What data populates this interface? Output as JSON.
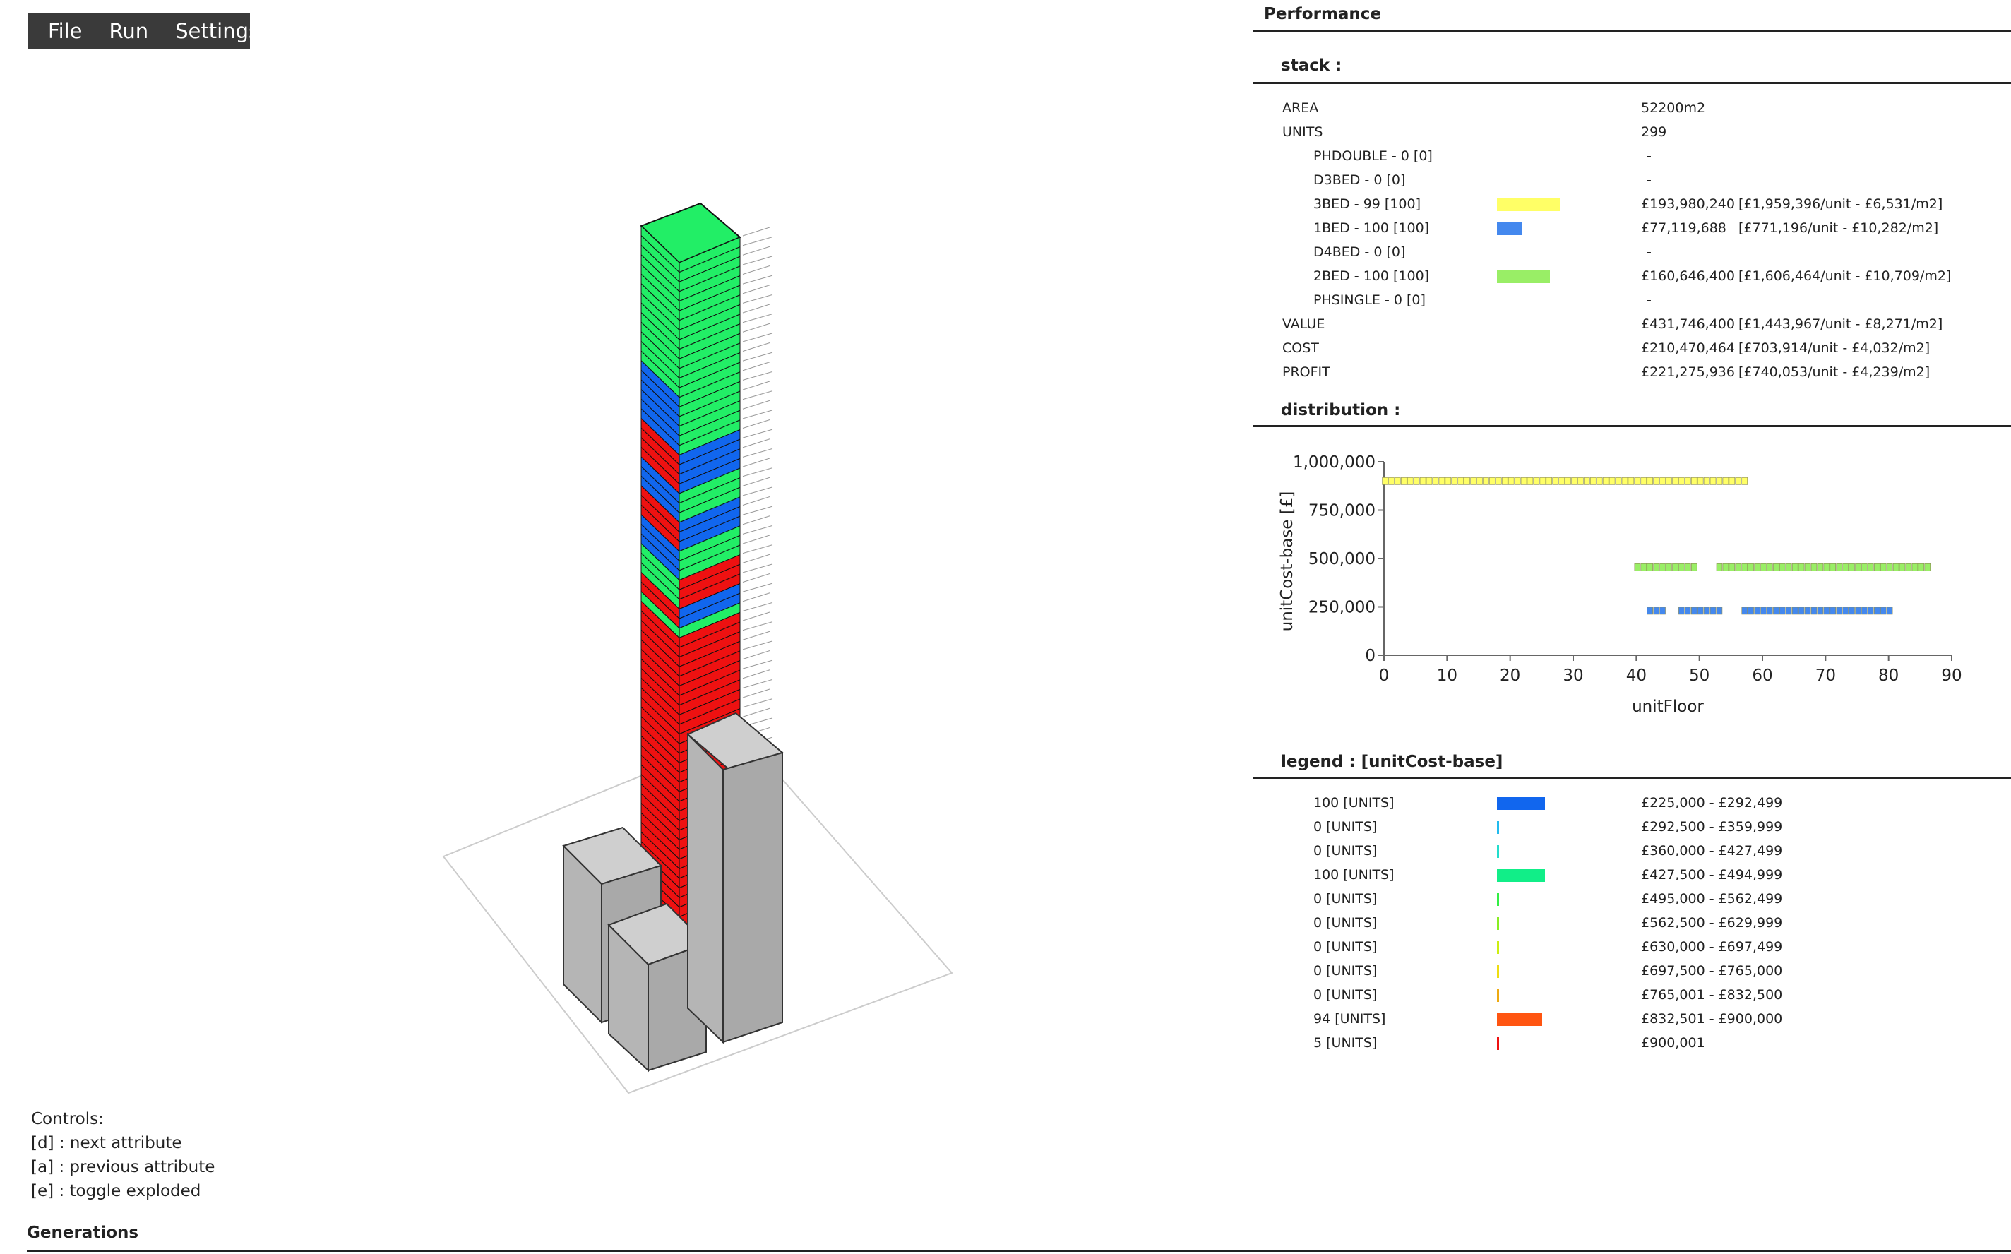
{
  "menu": [
    "File",
    "Run",
    "Settings"
  ],
  "controls": {
    "title": "Controls:",
    "lines": [
      "[d] : next attribute",
      "[a] : previous attribute",
      "[e] : toggle exploded"
    ]
  },
  "generations": "Generations",
  "panel": {
    "title": "Performance",
    "stack": {
      "title": "stack :",
      "rows": [
        {
          "label": "AREA",
          "value": "52200m2",
          "detail": "",
          "sub": false
        },
        {
          "label": "UNITS",
          "value": "299",
          "detail": "",
          "sub": false
        },
        {
          "label": "PHDOUBLE - 0 [0]",
          "value": "-",
          "detail": "",
          "sub": true
        },
        {
          "label": "D3BED - 0 [0]",
          "value": "-",
          "detail": "",
          "sub": true
        },
        {
          "label": "3BED - 99 [100]",
          "value": "£193,980,240",
          "detail": "[£1,959,396/unit - £6,531/m2]",
          "sub": true,
          "bar_color": "#ffff66",
          "bar_fraction": 0.99
        },
        {
          "label": "1BED - 100 [100]",
          "value": "£77,119,688",
          "detail": "[£771,196/unit - £10,282/m2]",
          "sub": true,
          "bar_color": "#4488ee",
          "bar_fraction": 0.39
        },
        {
          "label": "D4BED - 0 [0]",
          "value": "-",
          "detail": "",
          "sub": true
        },
        {
          "label": "2BED - 100 [100]",
          "value": "£160,646,400",
          "detail": "[£1,606,464/unit - £10,709/m2]",
          "sub": true,
          "bar_color": "#99ee66",
          "bar_fraction": 0.83
        },
        {
          "label": "PHSINGLE - 0 [0]",
          "value": "-",
          "detail": "",
          "sub": true
        },
        {
          "label": "VALUE",
          "value": "£431,746,400",
          "detail": "[£1,443,967/unit - £8,271/m2]",
          "sub": false
        },
        {
          "label": "COST",
          "value": "£210,470,464",
          "detail": "[£703,914/unit - £4,032/m2]",
          "sub": false
        },
        {
          "label": "PROFIT",
          "value": "£221,275,936",
          "detail": "[£740,053/unit - £4,239/m2]",
          "sub": false
        }
      ]
    },
    "distribution": {
      "title": "distribution :"
    },
    "legend": {
      "title": "legend : [unitCost-base]",
      "rows": [
        {
          "label": "100 [UNITS]",
          "range": "£225,000 - £292,499",
          "count": 100,
          "color": "#1166ee"
        },
        {
          "label": "0 [UNITS]",
          "range": "£292,500 - £359,999",
          "count": 0,
          "color": "#22bbee"
        },
        {
          "label": "0 [UNITS]",
          "range": "£360,000 - £427,499",
          "count": 0,
          "color": "#22ddcc"
        },
        {
          "label": "100 [UNITS]",
          "range": "£427,500 - £494,999",
          "count": 100,
          "color": "#11ee88"
        },
        {
          "label": "0 [UNITS]",
          "range": "£495,000 - £562,499",
          "count": 0,
          "color": "#33ee44"
        },
        {
          "label": "0 [UNITS]",
          "range": "£562,500 - £629,999",
          "count": 0,
          "color": "#88ee22"
        },
        {
          "label": "0 [UNITS]",
          "range": "£630,000 - £697,499",
          "count": 0,
          "color": "#ccee11"
        },
        {
          "label": "0 [UNITS]",
          "range": "£697,500 - £765,000",
          "count": 0,
          "color": "#eedd11"
        },
        {
          "label": "0 [UNITS]",
          "range": "£765,001 - £832,500",
          "count": 0,
          "color": "#eeaa11"
        },
        {
          "label": "94 [UNITS]",
          "range": "£832,501 - £900,000",
          "count": 94,
          "color": "#ff5511"
        },
        {
          "label": "5 [UNITS]",
          "range": "£900,001",
          "count": 5,
          "color": "#ee1111"
        }
      ]
    }
  },
  "chart_data": {
    "type": "scatter",
    "xlabel": "unitFloor",
    "ylabel": "unitCost-base [£]",
    "xlim": [
      0,
      90
    ],
    "ylim": [
      0,
      1000000
    ],
    "xticks": [
      0,
      10,
      20,
      30,
      40,
      50,
      60,
      70,
      80,
      90
    ],
    "yticks": [
      0,
      250000,
      500000,
      750000,
      1000000
    ],
    "xtick_labels": [
      "0",
      "10",
      "20",
      "30",
      "40",
      "50",
      "60",
      "70",
      "80",
      "90"
    ],
    "ytick_labels": [
      "0",
      "250,000",
      "500,000",
      "750,000",
      "1,000,000"
    ],
    "series": [
      {
        "color": "#ffff66",
        "segments": [
          {
            "x_from": 0,
            "x_to": 57,
            "y": 900000
          }
        ]
      },
      {
        "color": "#99ee66",
        "segments": [
          {
            "x_from": 40,
            "x_to": 49,
            "y": 455000
          },
          {
            "x_from": 53,
            "x_to": 57,
            "y": 455000
          },
          {
            "x_from": 58,
            "x_to": 86,
            "y": 455000
          }
        ]
      },
      {
        "color": "#4488ee",
        "segments": [
          {
            "x_from": 42,
            "x_to": 44,
            "y": 230000
          },
          {
            "x_from": 47,
            "x_to": 53,
            "y": 230000
          },
          {
            "x_from": 57,
            "x_to": 80,
            "y": 230000
          }
        ]
      }
    ]
  }
}
